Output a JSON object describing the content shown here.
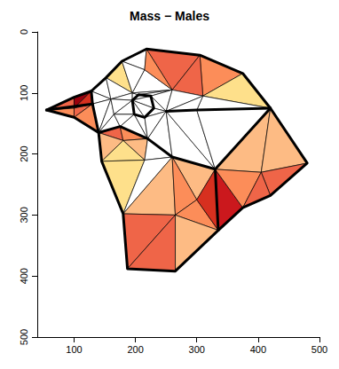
{
  "chart_data": {
    "type": "polygon",
    "title": "Mass − Males",
    "xlim": [
      40,
      500
    ],
    "ylim": [
      500,
      0
    ],
    "xticks": [
      100,
      200,
      300,
      400,
      500
    ],
    "yticks": [
      0,
      100,
      200,
      300,
      400,
      500
    ],
    "grid": false,
    "polygons": [
      {
        "points": [
          [
            55,
            128
          ],
          [
            100,
            107
          ],
          [
            100,
            125
          ]
        ],
        "color": "#EF6548"
      },
      {
        "points": [
          [
            100,
            107
          ],
          [
            128,
            97
          ],
          [
            100,
            125
          ]
        ],
        "color": "#99000D"
      },
      {
        "points": [
          [
            100,
            125
          ],
          [
            128,
            97
          ],
          [
            130,
            118
          ]
        ],
        "color": "#D7301F"
      },
      {
        "points": [
          [
            55,
            128
          ],
          [
            100,
            125
          ],
          [
            100,
            140
          ]
        ],
        "color": "#FC8D59"
      },
      {
        "points": [
          [
            100,
            125
          ],
          [
            130,
            118
          ],
          [
            100,
            140
          ]
        ],
        "color": "#EF6548"
      },
      {
        "points": [
          [
            100,
            140
          ],
          [
            130,
            118
          ],
          [
            140,
            165
          ]
        ],
        "color": "#FC8D59"
      },
      {
        "points": [
          [
            128,
            97
          ],
          [
            152,
            75
          ],
          [
            160,
            110
          ]
        ],
        "color": "#FFFFFF"
      },
      {
        "points": [
          [
            152,
            75
          ],
          [
            178,
            48
          ],
          [
            195,
            100
          ]
        ],
        "color": "#FEE08B"
      },
      {
        "points": [
          [
            152,
            75
          ],
          [
            195,
            100
          ],
          [
            160,
            110
          ]
        ],
        "color": "#FFFFFF"
      },
      {
        "points": [
          [
            178,
            48
          ],
          [
            218,
            28
          ],
          [
            215,
            62
          ]
        ],
        "color": "#FFFFFF"
      },
      {
        "points": [
          [
            178,
            48
          ],
          [
            215,
            62
          ],
          [
            195,
            100
          ]
        ],
        "color": "#FFFFFF"
      },
      {
        "points": [
          [
            195,
            100
          ],
          [
            215,
            62
          ],
          [
            260,
            95
          ]
        ],
        "color": "#FFFFFF"
      },
      {
        "points": [
          [
            218,
            28
          ],
          [
            305,
            38
          ],
          [
            260,
            95
          ]
        ],
        "color": "#EF6548"
      },
      {
        "points": [
          [
            218,
            28
          ],
          [
            260,
            95
          ],
          [
            215,
            62
          ]
        ],
        "color": "#FC8D59"
      },
      {
        "points": [
          [
            305,
            38
          ],
          [
            375,
            68
          ],
          [
            310,
            105
          ]
        ],
        "color": "#FC8D59"
      },
      {
        "points": [
          [
            305,
            38
          ],
          [
            310,
            105
          ],
          [
            260,
            95
          ]
        ],
        "color": "#EF6548"
      },
      {
        "points": [
          [
            375,
            68
          ],
          [
            420,
            125
          ],
          [
            310,
            105
          ]
        ],
        "color": "#FEE08B"
      },
      {
        "points": [
          [
            310,
            105
          ],
          [
            420,
            125
          ],
          [
            300,
            128
          ]
        ],
        "color": "#FFFFFF"
      },
      {
        "points": [
          [
            128,
            97
          ],
          [
            160,
            110
          ],
          [
            130,
            118
          ]
        ],
        "color": "#FFFFFF"
      },
      {
        "points": [
          [
            130,
            118
          ],
          [
            160,
            110
          ],
          [
            140,
            165
          ]
        ],
        "color": "#FFFFFF"
      },
      {
        "points": [
          [
            160,
            110
          ],
          [
            165,
            135
          ],
          [
            140,
            165
          ]
        ],
        "color": "#FFFFFF"
      },
      {
        "points": [
          [
            160,
            110
          ],
          [
            195,
            100
          ],
          [
            195,
            112
          ]
        ],
        "color": "#FFFFFF"
      },
      {
        "points": [
          [
            160,
            110
          ],
          [
            195,
            112
          ],
          [
            165,
            135
          ]
        ],
        "color": "#FFFFFF"
      },
      {
        "points": [
          [
            195,
            100
          ],
          [
            205,
            103
          ],
          [
            195,
            112
          ]
        ],
        "color": "#FFFFFF"
      },
      {
        "points": [
          [
            195,
            100
          ],
          [
            260,
            95
          ],
          [
            205,
            103
          ]
        ],
        "color": "#FFFFFF"
      },
      {
        "points": [
          [
            205,
            103
          ],
          [
            260,
            95
          ],
          [
            225,
            105
          ]
        ],
        "color": "#FFFFFF"
      },
      {
        "points": [
          [
            225,
            105
          ],
          [
            260,
            95
          ],
          [
            250,
            130
          ]
        ],
        "color": "#FFFFFF"
      },
      {
        "points": [
          [
            225,
            105
          ],
          [
            250,
            130
          ],
          [
            230,
            125
          ]
        ],
        "color": "#FFFFFF"
      },
      {
        "points": [
          [
            260,
            95
          ],
          [
            310,
            105
          ],
          [
            250,
            130
          ]
        ],
        "color": "#FFFFFF"
      },
      {
        "points": [
          [
            250,
            130
          ],
          [
            310,
            105
          ],
          [
            300,
            128
          ]
        ],
        "color": "#FFFFFF"
      },
      {
        "points": [
          [
            195,
            112
          ],
          [
            205,
            103
          ],
          [
            225,
            105
          ]
        ],
        "color": "#FFFFFF"
      },
      {
        "points": [
          [
            195,
            112
          ],
          [
            225,
            105
          ],
          [
            230,
            125
          ]
        ],
        "color": "#FFFFFF"
      },
      {
        "points": [
          [
            195,
            112
          ],
          [
            230,
            125
          ],
          [
            215,
            140
          ]
        ],
        "color": "#FFFFFF"
      },
      {
        "points": [
          [
            195,
            112
          ],
          [
            215,
            140
          ],
          [
            198,
            135
          ]
        ],
        "color": "#FFFFFF"
      },
      {
        "points": [
          [
            165,
            135
          ],
          [
            195,
            112
          ],
          [
            198,
            135
          ]
        ],
        "color": "#FFFFFF"
      },
      {
        "points": [
          [
            140,
            165
          ],
          [
            165,
            135
          ],
          [
            175,
            155
          ]
        ],
        "color": "#FFFFFF"
      },
      {
        "points": [
          [
            165,
            135
          ],
          [
            198,
            135
          ],
          [
            175,
            155
          ]
        ],
        "color": "#FFFFFF"
      },
      {
        "points": [
          [
            175,
            155
          ],
          [
            198,
            135
          ],
          [
            220,
            175
          ]
        ],
        "color": "#FFFFFF"
      },
      {
        "points": [
          [
            198,
            135
          ],
          [
            215,
            140
          ],
          [
            220,
            175
          ]
        ],
        "color": "#FFFFFF"
      },
      {
        "points": [
          [
            215,
            140
          ],
          [
            230,
            125
          ],
          [
            250,
            130
          ]
        ],
        "color": "#FFFFFF"
      },
      {
        "points": [
          [
            215,
            140
          ],
          [
            250,
            130
          ],
          [
            220,
            175
          ]
        ],
        "color": "#FFFFFF"
      },
      {
        "points": [
          [
            220,
            175
          ],
          [
            250,
            130
          ],
          [
            260,
            205
          ]
        ],
        "color": "#FFFFFF"
      },
      {
        "points": [
          [
            250,
            130
          ],
          [
            330,
            225
          ],
          [
            260,
            205
          ]
        ],
        "color": "#FFFFFF"
      },
      {
        "points": [
          [
            250,
            130
          ],
          [
            300,
            128
          ],
          [
            330,
            225
          ]
        ],
        "color": "#FFFFFF"
      },
      {
        "points": [
          [
            300,
            128
          ],
          [
            420,
            125
          ],
          [
            330,
            225
          ]
        ],
        "color": "#FFFFFF"
      },
      {
        "points": [
          [
            140,
            165
          ],
          [
            175,
            155
          ],
          [
            180,
            178
          ]
        ],
        "color": "#EF6548"
      },
      {
        "points": [
          [
            175,
            155
          ],
          [
            220,
            175
          ],
          [
            180,
            178
          ]
        ],
        "color": "#FC8D59"
      },
      {
        "points": [
          [
            140,
            165
          ],
          [
            180,
            178
          ],
          [
            145,
            212
          ]
        ],
        "color": "#FDBB84"
      },
      {
        "points": [
          [
            180,
            178
          ],
          [
            220,
            175
          ],
          [
            215,
            210
          ]
        ],
        "color": "#FDBB84"
      },
      {
        "points": [
          [
            145,
            212
          ],
          [
            180,
            178
          ],
          [
            215,
            210
          ]
        ],
        "color": "#FEE08B"
      },
      {
        "points": [
          [
            220,
            175
          ],
          [
            260,
            205
          ],
          [
            215,
            210
          ]
        ],
        "color": "#FFFFFF"
      },
      {
        "points": [
          [
            145,
            212
          ],
          [
            215,
            210
          ],
          [
            180,
            298
          ]
        ],
        "color": "#FEE08B"
      },
      {
        "points": [
          [
            215,
            210
          ],
          [
            260,
            205
          ],
          [
            180,
            298
          ]
        ],
        "color": "#FFFFFF"
      },
      {
        "points": [
          [
            260,
            205
          ],
          [
            265,
            300
          ],
          [
            180,
            298
          ]
        ],
        "color": "#FDBB84"
      },
      {
        "points": [
          [
            260,
            205
          ],
          [
            330,
            225
          ],
          [
            300,
            275
          ]
        ],
        "color": "#FDBB84"
      },
      {
        "points": [
          [
            260,
            205
          ],
          [
            300,
            275
          ],
          [
            265,
            300
          ]
        ],
        "color": "#FC8D59"
      },
      {
        "points": [
          [
            300,
            275
          ],
          [
            335,
            325
          ],
          [
            265,
            300
          ]
        ],
        "color": "#FC8D59"
      },
      {
        "points": [
          [
            330,
            225
          ],
          [
            335,
            325
          ],
          [
            300,
            275
          ]
        ],
        "color": "#D7301F"
      },
      {
        "points": [
          [
            330,
            225
          ],
          [
            375,
            288
          ],
          [
            335,
            325
          ]
        ],
        "color": "#CB181D"
      },
      {
        "points": [
          [
            180,
            298
          ],
          [
            265,
            300
          ],
          [
            187,
            388
          ]
        ],
        "color": "#EF6548"
      },
      {
        "points": [
          [
            187,
            388
          ],
          [
            265,
            300
          ],
          [
            265,
            392
          ]
        ],
        "color": "#EF6548"
      },
      {
        "points": [
          [
            265,
            300
          ],
          [
            335,
            325
          ],
          [
            265,
            392
          ]
        ],
        "color": "#FDBB84"
      },
      {
        "points": [
          [
            330,
            225
          ],
          [
            420,
            125
          ],
          [
            405,
            230
          ]
        ],
        "color": "#FDBB84"
      },
      {
        "points": [
          [
            420,
            125
          ],
          [
            480,
            215
          ],
          [
            405,
            230
          ]
        ],
        "color": "#FDBB84"
      },
      {
        "points": [
          [
            405,
            230
          ],
          [
            480,
            215
          ],
          [
            420,
            268
          ]
        ],
        "color": "#EF6548"
      },
      {
        "points": [
          [
            330,
            225
          ],
          [
            405,
            230
          ],
          [
            375,
            288
          ]
        ],
        "color": "#FC8D59"
      },
      {
        "points": [
          [
            405,
            230
          ],
          [
            420,
            268
          ],
          [
            375,
            288
          ]
        ],
        "color": "#EF6548"
      }
    ],
    "outlines": [
      [
        [
          55,
          128
        ],
        [
          100,
          107
        ],
        [
          128,
          97
        ],
        [
          152,
          75
        ],
        [
          178,
          48
        ],
        [
          218,
          28
        ],
        [
          305,
          38
        ],
        [
          375,
          68
        ],
        [
          420,
          125
        ],
        [
          480,
          215
        ],
        [
          420,
          268
        ],
        [
          375,
          288
        ],
        [
          335,
          325
        ],
        [
          265,
          392
        ],
        [
          187,
          388
        ],
        [
          180,
          298
        ],
        [
          145,
          212
        ],
        [
          140,
          165
        ],
        [
          100,
          140
        ],
        [
          55,
          128
        ]
      ],
      [
        [
          195,
          112
        ],
        [
          205,
          103
        ],
        [
          225,
          105
        ],
        [
          230,
          125
        ],
        [
          215,
          140
        ],
        [
          198,
          135
        ],
        [
          195,
          112
        ]
      ],
      [
        [
          128,
          97
        ],
        [
          130,
          118
        ],
        [
          140,
          165
        ]
      ],
      [
        [
          55,
          128
        ],
        [
          130,
          118
        ]
      ],
      [
        [
          250,
          130
        ],
        [
          300,
          128
        ],
        [
          420,
          125
        ]
      ],
      [
        [
          140,
          165
        ],
        [
          175,
          155
        ],
        [
          220,
          175
        ],
        [
          260,
          205
        ],
        [
          330,
          225
        ],
        [
          420,
          125
        ]
      ],
      [
        [
          330,
          225
        ],
        [
          335,
          325
        ]
      ]
    ]
  }
}
